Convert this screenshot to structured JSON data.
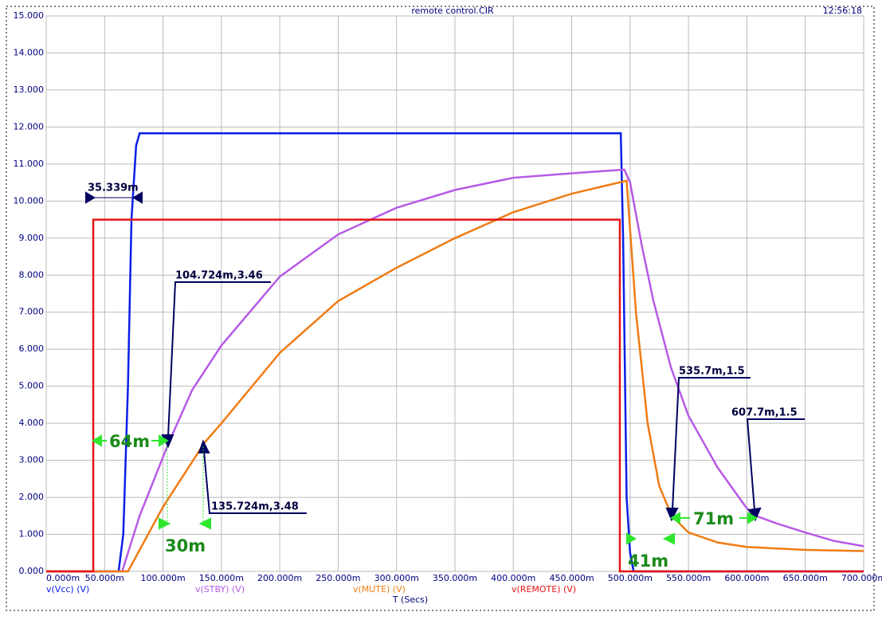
{
  "chart_data": {
    "type": "line",
    "title": "remote control.CIR",
    "time": "12:56:18",
    "xlabel": "T (Secs)",
    "xlim": [
      0,
      0.7
    ],
    "xticks": [
      {
        "value": 0,
        "label": "0.000m"
      },
      {
        "value": 0.05,
        "label": "50.000m"
      },
      {
        "value": 0.1,
        "label": "100.000m"
      },
      {
        "value": 0.15,
        "label": "150.000m"
      },
      {
        "value": 0.2,
        "label": "200.000m"
      },
      {
        "value": 0.25,
        "label": "250.000m"
      },
      {
        "value": 0.3,
        "label": "300.000m"
      },
      {
        "value": 0.35,
        "label": "350.000m"
      },
      {
        "value": 0.4,
        "label": "400.000m"
      },
      {
        "value": 0.45,
        "label": "450.000m"
      },
      {
        "value": 0.5,
        "label": "500.000m"
      },
      {
        "value": 0.55,
        "label": "550.000m"
      },
      {
        "value": 0.6,
        "label": "600.000m"
      },
      {
        "value": 0.65,
        "label": "650.000m"
      },
      {
        "value": 0.7,
        "label": "700.000m"
      }
    ],
    "ylim": [
      0,
      15
    ],
    "yticks": [
      {
        "value": 0,
        "label": "0.000"
      },
      {
        "value": 1,
        "label": "1.000"
      },
      {
        "value": 2,
        "label": "2.000"
      },
      {
        "value": 3,
        "label": "3.000"
      },
      {
        "value": 4,
        "label": "4.000"
      },
      {
        "value": 5,
        "label": "5.000"
      },
      {
        "value": 6,
        "label": "6.000"
      },
      {
        "value": 7,
        "label": "7.000"
      },
      {
        "value": 8,
        "label": "8.000"
      },
      {
        "value": 9,
        "label": "9.000"
      },
      {
        "value": 10,
        "label": "10.000"
      },
      {
        "value": 11,
        "label": "11.000"
      },
      {
        "value": 12,
        "label": "12.000"
      },
      {
        "value": 13,
        "label": "13.000"
      },
      {
        "value": 14,
        "label": "14.000"
      },
      {
        "value": 15,
        "label": "15.000"
      }
    ],
    "grid": true,
    "series": [
      {
        "name": "v(Vcc) (V)",
        "color": "#0a1ee6",
        "x": [
          0,
          0.062,
          0.066,
          0.07,
          0.073,
          0.077,
          0.08,
          0.492,
          0.494,
          0.497,
          0.5,
          0.503,
          0.7
        ],
        "values": [
          0,
          0,
          1,
          5,
          9.5,
          11.5,
          11.83,
          11.83,
          9,
          2,
          0.5,
          0,
          0
        ]
      },
      {
        "name": "v(STBY) (V)",
        "color": "#b65ae6",
        "x": [
          0,
          0.065,
          0.08,
          0.1047,
          0.125,
          0.15,
          0.2,
          0.25,
          0.3,
          0.35,
          0.4,
          0.45,
          0.495,
          0.5,
          0.51,
          0.52,
          0.535,
          0.55,
          0.575,
          0.6,
          0.6077,
          0.625,
          0.65,
          0.675,
          0.7
        ],
        "values": [
          0,
          0,
          1.5,
          3.46,
          4.9,
          6.1,
          7.96,
          9.1,
          9.82,
          10.3,
          10.63,
          10.75,
          10.85,
          10.5,
          8.8,
          7.3,
          5.5,
          4.2,
          2.8,
          1.7,
          1.5,
          1.3,
          1.05,
          0.82,
          0.68
        ]
      },
      {
        "name": "v(MUTE) (V)",
        "color": "#f07c14",
        "x": [
          0,
          0.07,
          0.1,
          0.1357,
          0.15,
          0.2,
          0.25,
          0.3,
          0.35,
          0.4,
          0.45,
          0.497,
          0.505,
          0.515,
          0.525,
          0.5357,
          0.55,
          0.575,
          0.6,
          0.65,
          0.7
        ],
        "values": [
          0,
          0,
          1.74,
          3.48,
          4,
          5.9,
          7.3,
          8.2,
          9,
          9.7,
          10.2,
          10.55,
          7,
          4,
          2.3,
          1.5,
          1.05,
          0.78,
          0.66,
          0.58,
          0.55
        ]
      },
      {
        "name": "v(REMOTE) (V)",
        "color": "#e61414",
        "x": [
          0,
          0.0403,
          0.0403,
          0.4912,
          0.4912,
          0.7
        ],
        "values": [
          0,
          0,
          9.5,
          9.5,
          0,
          0
        ]
      }
    ],
    "annotations": [
      "35.339m",
      "104.724m,3.46",
      "135.724m,3.48",
      "535.7m,1.5",
      "607.7m,1.5",
      "64m",
      "30m",
      "71m",
      "41m"
    ]
  }
}
